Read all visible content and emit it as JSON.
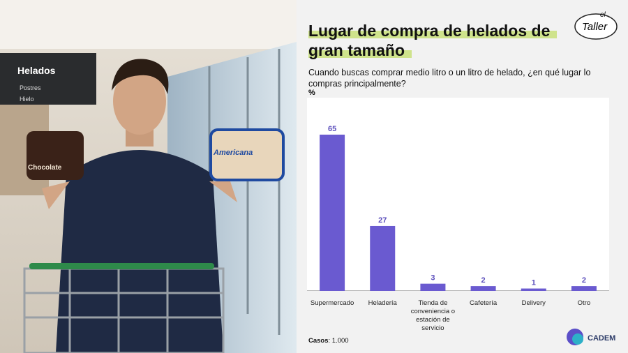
{
  "chart_data": {
    "type": "bar",
    "title": "Lugar de compra de helados de gran tamaño",
    "subtitle": "Cuando buscas comprar medio litro o un litro de helado, ¿en qué lugar lo compras principalmente?",
    "unit_label": "%",
    "categories": [
      "Supermercado",
      "Heladería",
      "Tienda de conveniencia o estación de servicio",
      "Cafetería",
      "Delivery",
      "Otro"
    ],
    "values": [
      65,
      27,
      3,
      2,
      1,
      2
    ],
    "color": "#6a5ad0",
    "footnote": {
      "label": "Casos",
      "value": ": 1.000"
    }
  },
  "logos": {
    "taller_top": "el",
    "taller": "Taller",
    "cadem": "CADEM"
  },
  "photo": {
    "sign": "Helados",
    "aisle_1": "Postres",
    "aisle_2": "Hielo",
    "tub_left": "Chocolate",
    "tub_right": "Americana"
  }
}
